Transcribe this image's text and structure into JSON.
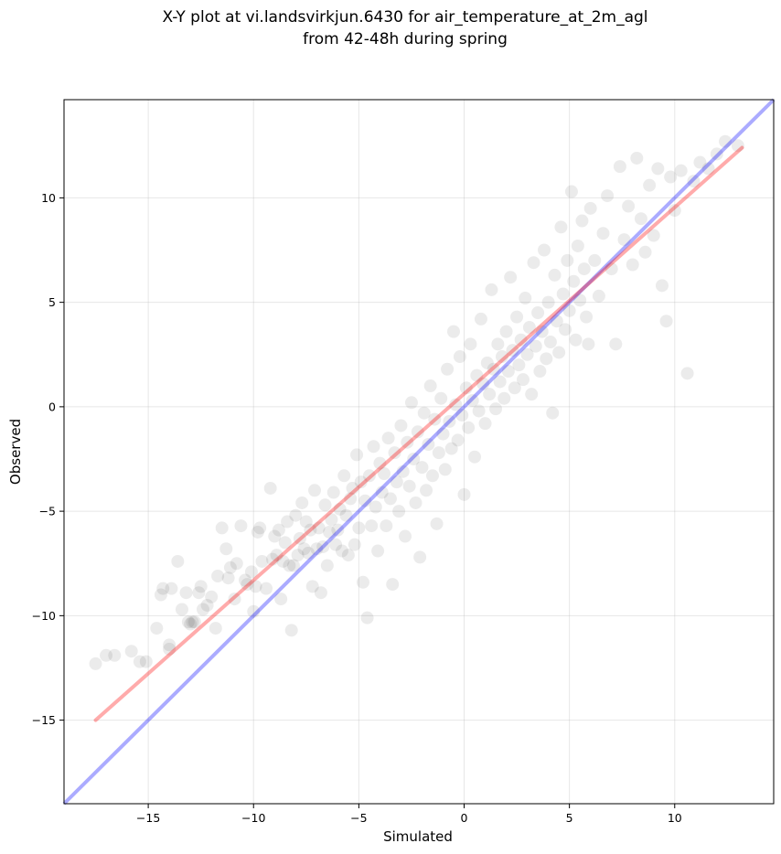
{
  "chart_data": {
    "type": "scatter",
    "title_line1": "X-Y plot at vi.landsvirkjun.6430 for air_temperature_at_2m_agl",
    "title_line2": "from 42-48h during spring",
    "xlabel": "Simulated",
    "ylabel": "Observed",
    "xlim": [
      -19,
      14.7
    ],
    "ylim": [
      -19,
      14.7
    ],
    "xticks": [
      -15,
      -10,
      -5,
      0,
      5,
      10
    ],
    "yticks": [
      -15,
      -10,
      -5,
      0,
      5,
      10
    ],
    "xtick_labels": [
      "−15",
      "−10",
      "−5",
      "0",
      "5",
      "10"
    ],
    "ytick_labels": [
      "−15",
      "−10",
      "−5",
      "0",
      "5",
      "10"
    ],
    "grid": true,
    "point_color": "#000000",
    "point_alpha": 0.08,
    "identity_line": {
      "color": "#0000ff",
      "alpha": 0.33,
      "from": [
        -19,
        -19
      ],
      "to": [
        14.7,
        14.7
      ]
    },
    "fit_line": {
      "color": "#ff0000",
      "alpha": 0.33,
      "from": [
        -17.5,
        -15.0
      ],
      "to": [
        13.2,
        12.4
      ]
    },
    "points": [
      [
        -17.5,
        -12.3
      ],
      [
        -17.0,
        -11.9
      ],
      [
        -16.6,
        -11.9
      ],
      [
        -15.8,
        -11.7
      ],
      [
        -15.4,
        -12.2
      ],
      [
        -15.1,
        -12.2
      ],
      [
        -14.6,
        -10.6
      ],
      [
        -14.4,
        -9.0
      ],
      [
        -14.3,
        -8.7
      ],
      [
        -14.0,
        -11.4
      ],
      [
        -14.0,
        -11.6
      ],
      [
        -13.9,
        -8.7
      ],
      [
        -13.6,
        -7.4
      ],
      [
        -13.4,
        -9.7
      ],
      [
        -13.2,
        -8.9
      ],
      [
        -13.1,
        -10.3
      ],
      [
        -13.0,
        -10.4
      ],
      [
        -12.9,
        -10.3
      ],
      [
        -12.8,
        -10.3
      ],
      [
        -12.6,
        -8.9
      ],
      [
        -12.5,
        -8.6
      ],
      [
        -12.4,
        -9.7
      ],
      [
        -12.2,
        -9.5
      ],
      [
        -12.0,
        -9.1
      ],
      [
        -11.8,
        -10.6
      ],
      [
        -11.7,
        -8.1
      ],
      [
        -11.5,
        -5.8
      ],
      [
        -11.3,
        -6.8
      ],
      [
        -11.2,
        -8.2
      ],
      [
        -11.1,
        -7.7
      ],
      [
        -10.9,
        -9.2
      ],
      [
        -10.8,
        -7.5
      ],
      [
        -10.6,
        -5.7
      ],
      [
        -10.4,
        -8.3
      ],
      [
        -10.3,
        -8.5
      ],
      [
        -10.1,
        -7.9
      ],
      [
        -10.0,
        -9.8
      ],
      [
        -9.9,
        -8.6
      ],
      [
        -9.8,
        -6.0
      ],
      [
        -9.7,
        -5.8
      ],
      [
        -9.6,
        -7.4
      ],
      [
        -9.4,
        -8.7
      ],
      [
        -9.2,
        -3.9
      ],
      [
        -9.1,
        -7.3
      ],
      [
        -9.0,
        -6.2
      ],
      [
        -8.9,
        -7.1
      ],
      [
        -8.8,
        -5.9
      ],
      [
        -8.7,
        -9.2
      ],
      [
        -8.6,
        -7.4
      ],
      [
        -8.5,
        -6.5
      ],
      [
        -8.4,
        -5.5
      ],
      [
        -8.3,
        -7.6
      ],
      [
        -8.2,
        -10.7
      ],
      [
        -8.1,
        -7.6
      ],
      [
        -8.0,
        -5.2
      ],
      [
        -7.9,
        -7.1
      ],
      [
        -7.8,
        -6.3
      ],
      [
        -7.7,
        -4.6
      ],
      [
        -7.6,
        -6.8
      ],
      [
        -7.5,
        -5.5
      ],
      [
        -7.4,
        -7.0
      ],
      [
        -7.3,
        -5.9
      ],
      [
        -7.2,
        -8.6
      ],
      [
        -7.1,
        -4.0
      ],
      [
        -7.0,
        -6.8
      ],
      [
        -6.9,
        -5.8
      ],
      [
        -6.8,
        -8.9
      ],
      [
        -6.7,
        -6.7
      ],
      [
        -6.6,
        -4.7
      ],
      [
        -6.5,
        -7.6
      ],
      [
        -6.4,
        -6.0
      ],
      [
        -6.3,
        -5.4
      ],
      [
        -6.2,
        -4.1
      ],
      [
        -6.1,
        -6.6
      ],
      [
        -6.0,
        -5.9
      ],
      [
        -5.9,
        -4.9
      ],
      [
        -5.8,
        -6.9
      ],
      [
        -5.7,
        -3.3
      ],
      [
        -5.6,
        -5.2
      ],
      [
        -5.5,
        -7.1
      ],
      [
        -5.4,
        -4.4
      ],
      [
        -5.3,
        -3.9
      ],
      [
        -5.2,
        -6.6
      ],
      [
        -5.1,
        -2.3
      ],
      [
        -5.0,
        -5.8
      ],
      [
        -4.9,
        -3.6
      ],
      [
        -4.8,
        -8.4
      ],
      [
        -4.7,
        -4.5
      ],
      [
        -4.6,
        -10.1
      ],
      [
        -4.5,
        -3.3
      ],
      [
        -4.4,
        -5.7
      ],
      [
        -4.3,
        -1.9
      ],
      [
        -4.2,
        -4.8
      ],
      [
        -4.1,
        -6.9
      ],
      [
        -4.0,
        -2.7
      ],
      [
        -3.9,
        -4.1
      ],
      [
        -3.8,
        -3.2
      ],
      [
        -3.7,
        -5.7
      ],
      [
        -3.6,
        -1.5
      ],
      [
        -3.5,
        -4.4
      ],
      [
        -3.4,
        -8.5
      ],
      [
        -3.3,
        -2.2
      ],
      [
        -3.2,
        -3.6
      ],
      [
        -3.1,
        -5.0
      ],
      [
        -3.0,
        -0.9
      ],
      [
        -2.9,
        -3.1
      ],
      [
        -2.8,
        -6.2
      ],
      [
        -2.7,
        -1.7
      ],
      [
        -2.6,
        -3.8
      ],
      [
        -2.5,
        0.2
      ],
      [
        -2.4,
        -2.5
      ],
      [
        -2.3,
        -4.6
      ],
      [
        -2.2,
        -1.2
      ],
      [
        -2.1,
        -7.2
      ],
      [
        -2.0,
        -2.9
      ],
      [
        -1.9,
        -0.3
      ],
      [
        -1.8,
        -4.0
      ],
      [
        -1.7,
        -1.8
      ],
      [
        -1.6,
        1.0
      ],
      [
        -1.5,
        -3.3
      ],
      [
        -1.4,
        -0.6
      ],
      [
        -1.3,
        -5.6
      ],
      [
        -1.2,
        -2.2
      ],
      [
        -1.1,
        0.4
      ],
      [
        -1.0,
        -1.3
      ],
      [
        -0.9,
        -3.0
      ],
      [
        -0.8,
        1.8
      ],
      [
        -0.7,
        -0.7
      ],
      [
        -0.6,
        -2.0
      ],
      [
        -0.5,
        3.6
      ],
      [
        -0.4,
        0.1
      ],
      [
        -0.3,
        -1.6
      ],
      [
        -0.2,
        2.4
      ],
      [
        -0.1,
        -0.4
      ],
      [
        0.0,
        -4.2
      ],
      [
        0.1,
        0.9
      ],
      [
        0.2,
        -1.0
      ],
      [
        0.3,
        3.0
      ],
      [
        0.4,
        0.3
      ],
      [
        0.5,
        -2.4
      ],
      [
        0.6,
        1.5
      ],
      [
        0.7,
        -0.2
      ],
      [
        0.8,
        4.2
      ],
      [
        0.9,
        1.1
      ],
      [
        1.0,
        -0.8
      ],
      [
        1.1,
        2.1
      ],
      [
        1.2,
        0.6
      ],
      [
        1.3,
        5.6
      ],
      [
        1.4,
        1.8
      ],
      [
        1.5,
        -0.1
      ],
      [
        1.6,
        3.0
      ],
      [
        1.7,
        1.2
      ],
      [
        1.8,
        2.4
      ],
      [
        1.9,
        0.4
      ],
      [
        2.0,
        3.6
      ],
      [
        2.1,
        1.7
      ],
      [
        2.2,
        6.2
      ],
      [
        2.3,
        2.7
      ],
      [
        2.4,
        0.9
      ],
      [
        2.5,
        4.3
      ],
      [
        2.6,
        2.0
      ],
      [
        2.7,
        3.2
      ],
      [
        2.8,
        1.3
      ],
      [
        2.9,
        5.2
      ],
      [
        3.0,
        2.5
      ],
      [
        3.1,
        3.8
      ],
      [
        3.2,
        0.6
      ],
      [
        3.3,
        6.9
      ],
      [
        3.4,
        2.9
      ],
      [
        3.5,
        4.5
      ],
      [
        3.6,
        1.7
      ],
      [
        3.7,
        3.6
      ],
      [
        3.8,
        7.5
      ],
      [
        3.9,
        2.3
      ],
      [
        4.0,
        5.0
      ],
      [
        4.1,
        3.1
      ],
      [
        4.2,
        -0.3
      ],
      [
        4.3,
        6.3
      ],
      [
        4.4,
        4.1
      ],
      [
        4.5,
        2.6
      ],
      [
        4.6,
        8.6
      ],
      [
        4.7,
        5.4
      ],
      [
        4.8,
        3.7
      ],
      [
        4.9,
        7.0
      ],
      [
        5.0,
        4.6
      ],
      [
        5.1,
        10.3
      ],
      [
        5.2,
        6.0
      ],
      [
        5.3,
        3.2
      ],
      [
        5.4,
        7.7
      ],
      [
        5.5,
        5.1
      ],
      [
        5.6,
        8.9
      ],
      [
        5.7,
        6.6
      ],
      [
        5.8,
        4.3
      ],
      [
        5.9,
        3.0
      ],
      [
        6.0,
        9.5
      ],
      [
        6.2,
        7.0
      ],
      [
        6.4,
        5.3
      ],
      [
        6.6,
        8.3
      ],
      [
        6.8,
        10.1
      ],
      [
        7.0,
        6.6
      ],
      [
        7.2,
        3.0
      ],
      [
        7.4,
        11.5
      ],
      [
        7.6,
        8.0
      ],
      [
        7.8,
        9.6
      ],
      [
        8.0,
        6.8
      ],
      [
        8.2,
        11.9
      ],
      [
        8.4,
        9.0
      ],
      [
        8.6,
        7.4
      ],
      [
        8.8,
        10.6
      ],
      [
        9.0,
        8.2
      ],
      [
        9.2,
        11.4
      ],
      [
        9.4,
        5.8
      ],
      [
        9.6,
        4.1
      ],
      [
        9.8,
        11.0
      ],
      [
        10.0,
        9.4
      ],
      [
        10.3,
        11.3
      ],
      [
        10.6,
        1.6
      ],
      [
        10.9,
        10.8
      ],
      [
        11.2,
        11.7
      ],
      [
        11.6,
        11.4
      ],
      [
        12.0,
        12.1
      ],
      [
        12.4,
        12.7
      ],
      [
        13.0,
        12.5
      ]
    ]
  }
}
